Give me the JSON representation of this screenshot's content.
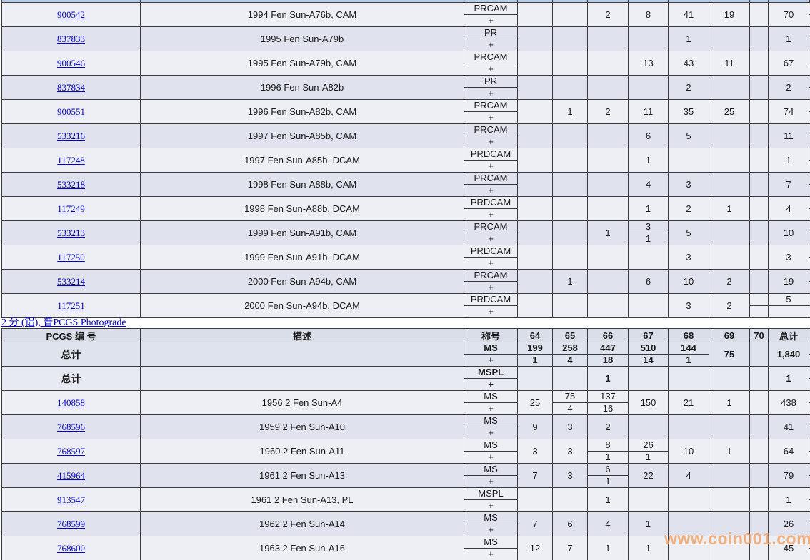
{
  "colors": {
    "link": "#0000cd",
    "watermark": "#f2a061",
    "grid": "#3a3a40"
  },
  "plus_label": "+",
  "watermark": {
    "text": "www.coin001.com",
    "color": "#f2a061"
  },
  "section": {
    "link_label": "2 分 (铝), 普PCGS Photograde"
  },
  "grade_columns": [
    "64",
    "65",
    "66",
    "67",
    "68",
    "69",
    "70",
    "总计"
  ],
  "top_table": {
    "rows": [
      {
        "pcgs": "900542",
        "desc": "1994 Fen Sun-A76b, CAM",
        "designation": "PRCAM",
        "cells": [
          "",
          "",
          "2",
          "8",
          "41",
          "19",
          "",
          "70"
        ]
      },
      {
        "pcgs": "837833",
        "desc": "1995 Fen Sun-A79b",
        "designation": "PR",
        "cells": [
          "",
          "",
          "",
          "",
          "1",
          "",
          "",
          "1"
        ]
      },
      {
        "pcgs": "900546",
        "desc": "1995 Fen Sun-A79b, CAM",
        "designation": "PRCAM",
        "cells": [
          "",
          "",
          "",
          "13",
          "43",
          "11",
          "",
          "67"
        ]
      },
      {
        "pcgs": "837834",
        "desc": "1996 Fen Sun-A82b",
        "designation": "PR",
        "cells": [
          "",
          "",
          "",
          "",
          "2",
          "",
          "",
          "2"
        ]
      },
      {
        "pcgs": "900551",
        "desc": "1996 Fen Sun-A82b, CAM",
        "designation": "PRCAM",
        "cells": [
          "",
          "1",
          "2",
          "11",
          "35",
          "25",
          "",
          "74"
        ]
      },
      {
        "pcgs": "533216",
        "desc": "1997 Fen Sun-A85b, CAM",
        "designation": "PRCAM",
        "cells": [
          "",
          "",
          "",
          "6",
          "5",
          "",
          "",
          "11"
        ]
      },
      {
        "pcgs": "117248",
        "desc": "1997 Fen Sun-A85b, DCAM",
        "designation": "PRDCAM",
        "cells": [
          "",
          "",
          "",
          "1",
          "",
          "",
          "",
          "1"
        ]
      },
      {
        "pcgs": "533218",
        "desc": "1998 Fen Sun-A88b, CAM",
        "designation": "PRCAM",
        "cells": [
          "",
          "",
          "",
          "4",
          "3",
          "",
          "",
          "7"
        ]
      },
      {
        "pcgs": "117249",
        "desc": "1998 Fen Sun-A88b, DCAM",
        "designation": "PRDCAM",
        "cells": [
          "",
          "",
          "",
          "1",
          "2",
          "1",
          "",
          "4"
        ]
      },
      {
        "pcgs": "533213",
        "desc": "1999 Fen Sun-A91b, CAM",
        "designation": "PRCAM",
        "cells": [
          "",
          "",
          "1",
          [
            "3",
            "1"
          ],
          "5",
          "",
          "",
          "10"
        ]
      },
      {
        "pcgs": "117250",
        "desc": "1999 Fen Sun-A91b, DCAM",
        "designation": "PRDCAM",
        "cells": [
          "",
          "",
          "",
          "",
          "3",
          "",
          "",
          "3"
        ]
      },
      {
        "pcgs": "533214",
        "desc": "2000 Fen Sun-A94b, CAM",
        "designation": "PRCAM",
        "cells": [
          "",
          "1",
          "",
          "6",
          "10",
          "2",
          "",
          "19"
        ]
      },
      {
        "pcgs": "117251",
        "desc": "2000 Fen Sun-A94b, DCAM",
        "designation": "PRDCAM",
        "cells": [
          "",
          "",
          "",
          "",
          "3",
          "2",
          [
            "",
            ""
          ],
          [
            "5",
            ""
          ]
        ]
      }
    ]
  },
  "bottom_table": {
    "header": [
      "PCGS 编 号",
      "描述",
      "称号",
      "64",
      "65",
      "66",
      "67",
      "68",
      "69",
      "70",
      "总计"
    ],
    "totals_rows": [
      {
        "label": "总计",
        "designation": "MS",
        "cells": [
          [
            "199",
            "1"
          ],
          [
            "258",
            "4"
          ],
          [
            "447",
            "18"
          ],
          [
            "510",
            "14"
          ],
          [
            "144",
            "1"
          ],
          "75",
          "",
          "1,840"
        ]
      },
      {
        "label": "总计",
        "designation": "MSPL",
        "cells": [
          "",
          "",
          "1",
          "",
          "",
          "",
          "",
          "1"
        ]
      }
    ],
    "rows": [
      {
        "pcgs": "140858",
        "desc": "1956 2 Fen Sun-A4",
        "designation": "MS",
        "cells": [
          "25",
          [
            "75",
            "4"
          ],
          [
            "137",
            "16"
          ],
          "150",
          "21",
          "1",
          "",
          "438"
        ]
      },
      {
        "pcgs": "768596",
        "desc": "1959 2 Fen Sun-A10",
        "designation": "MS",
        "cells": [
          "9",
          "3",
          "2",
          "",
          "",
          "",
          "",
          "41"
        ]
      },
      {
        "pcgs": "768597",
        "desc": "1960 2 Fen Sun-A11",
        "designation": "MS",
        "cells": [
          "3",
          "3",
          [
            "8",
            "1"
          ],
          [
            "26",
            "1"
          ],
          "10",
          "1",
          "",
          "64"
        ]
      },
      {
        "pcgs": "415964",
        "desc": "1961 2 Fen Sun-A13",
        "designation": "MS",
        "cells": [
          "7",
          "3",
          [
            "6",
            "1"
          ],
          "22",
          "4",
          "",
          "",
          "79"
        ]
      },
      {
        "pcgs": "913547",
        "desc": "1961 2 Fen Sun-A13, PL",
        "designation": "MSPL",
        "cells": [
          "",
          "",
          "1",
          "",
          "",
          "",
          "",
          "1"
        ]
      },
      {
        "pcgs": "768599",
        "desc": "1962 2 Fen Sun-A14",
        "designation": "MS",
        "cells": [
          "7",
          "6",
          "4",
          "1",
          "",
          "",
          "",
          "26"
        ]
      },
      {
        "pcgs": "768600",
        "desc": "1963 2 Fen Sun-A16",
        "designation": "MS",
        "cells": [
          "12",
          "7",
          "1",
          "1",
          "",
          "",
          "",
          "45"
        ]
      }
    ]
  }
}
